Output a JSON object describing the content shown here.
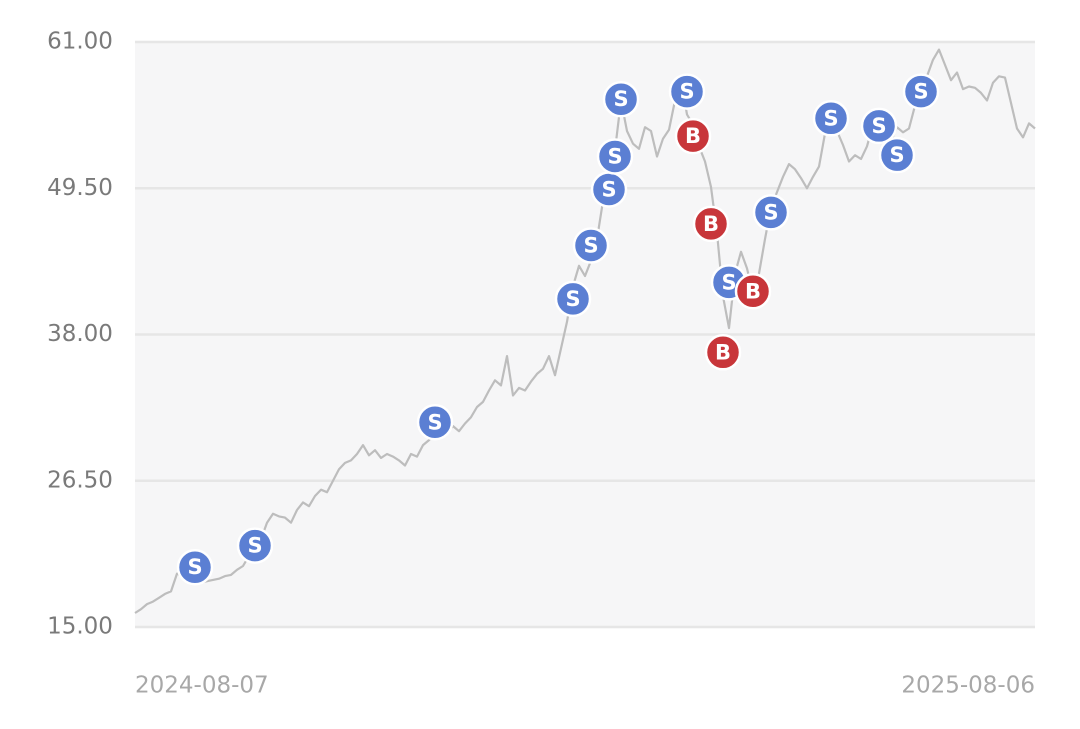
{
  "chart_data": {
    "type": "line",
    "categories": [
      "2024-08-07",
      null,
      null,
      null,
      null,
      null,
      null,
      null,
      null,
      null,
      null,
      null,
      null,
      null,
      null,
      null,
      null,
      null,
      null,
      null,
      null,
      null,
      null,
      null,
      null,
      null,
      null,
      null,
      null,
      null,
      null,
      null,
      null,
      null,
      null,
      null,
      null,
      null,
      null,
      null,
      null,
      null,
      null,
      null,
      null,
      null,
      null,
      null,
      null,
      null,
      null,
      null,
      null,
      null,
      null,
      null,
      null,
      null,
      null,
      null,
      null,
      null,
      null,
      null,
      null,
      null,
      null,
      null,
      null,
      null,
      null,
      null,
      null,
      null,
      null,
      null,
      null,
      null,
      null,
      null,
      null,
      null,
      null,
      null,
      null,
      null,
      null,
      null,
      null,
      null,
      null,
      null,
      null,
      null,
      null,
      null,
      null,
      null,
      null,
      null,
      null,
      null,
      null,
      null,
      null,
      null,
      null,
      null,
      null,
      null,
      null,
      null,
      null,
      null,
      null,
      null,
      null,
      null,
      null,
      null,
      null,
      null,
      null,
      null,
      null,
      null,
      null,
      null,
      null,
      null,
      null,
      null,
      null,
      null,
      null,
      null,
      null,
      null,
      null,
      null,
      null,
      null,
      null,
      null,
      null,
      null,
      null,
      null,
      null,
      null,
      "2025-08-06"
    ],
    "values": [
      16.1,
      16.4,
      16.8,
      17.0,
      17.3,
      17.6,
      17.8,
      19.2,
      19.0,
      18.8,
      18.6,
      18.5,
      18.6,
      18.7,
      18.8,
      19.0,
      19.1,
      19.5,
      19.8,
      20.6,
      21.0,
      21.9,
      23.2,
      23.9,
      23.7,
      23.6,
      23.2,
      24.2,
      24.8,
      24.5,
      25.3,
      25.8,
      25.6,
      26.5,
      27.4,
      27.9,
      28.1,
      28.6,
      29.3,
      28.5,
      28.9,
      28.3,
      28.6,
      28.4,
      28.1,
      27.7,
      28.6,
      28.4,
      29.3,
      29.7,
      30.2,
      30.6,
      30.3,
      30.8,
      30.4,
      31.0,
      31.5,
      32.3,
      32.7,
      33.6,
      34.4,
      34.0,
      36.3,
      33.2,
      33.8,
      33.6,
      34.3,
      34.9,
      35.3,
      36.3,
      34.8,
      36.9,
      39.0,
      41.8,
      43.4,
      42.6,
      43.8,
      45.5,
      48.5,
      50.0,
      52.5,
      56.4,
      54.0,
      53.0,
      52.6,
      54.3,
      54.0,
      52.0,
      53.4,
      54.1,
      56.4,
      58.0,
      55.3,
      54.5,
      52.8,
      51.6,
      49.6,
      46.0,
      41.0,
      38.5,
      42.8,
      44.5,
      43.2,
      41.2,
      42.8,
      45.5,
      48.0,
      49.2,
      50.4,
      51.4,
      51.0,
      50.3,
      49.5,
      50.4,
      51.2,
      53.8,
      55.0,
      54.0,
      52.9,
      51.6,
      52.1,
      51.8,
      52.8,
      54.5,
      54.8,
      53.6,
      53.2,
      54.3,
      53.9,
      54.2,
      56.0,
      57.3,
      58.3,
      59.6,
      60.4,
      59.2,
      58.0,
      58.6,
      57.3,
      57.5,
      57.4,
      57.0,
      56.4,
      57.8,
      58.3,
      58.2,
      56.2,
      54.2,
      53.5,
      54.6,
      54.2
    ],
    "color": "#bdbdbd",
    "markers": [
      {
        "label": "S",
        "color": "#5b7fd3",
        "values": [
          null,
          null,
          null,
          null,
          null,
          null,
          null,
          null,
          null,
          null,
          19.7,
          null,
          null,
          null,
          null,
          null,
          null,
          null,
          null,
          null,
          21.4,
          null,
          null,
          null,
          null,
          null,
          null,
          null,
          null,
          null,
          null,
          null,
          null,
          null,
          null,
          null,
          null,
          null,
          null,
          null,
          null,
          null,
          null,
          null,
          null,
          null,
          null,
          null,
          null,
          null,
          31.1,
          null,
          null,
          null,
          null,
          null,
          null,
          null,
          null,
          null,
          null,
          null,
          null,
          null,
          null,
          null,
          null,
          null,
          null,
          null,
          null,
          null,
          null,
          40.8,
          null,
          null,
          45.0,
          null,
          null,
          49.4,
          52.0,
          56.5,
          null,
          null,
          null,
          null,
          null,
          null,
          null,
          null,
          null,
          null,
          57.1,
          null,
          null,
          null,
          null,
          null,
          null,
          42.1,
          null,
          null,
          null,
          null,
          null,
          null,
          47.6,
          null,
          null,
          null,
          null,
          null,
          null,
          null,
          null,
          null,
          55.0,
          null,
          null,
          null,
          null,
          null,
          null,
          null,
          54.4,
          null,
          null,
          52.1,
          null,
          null,
          null,
          57.1,
          null,
          null,
          null,
          null,
          null,
          null,
          null,
          null,
          null,
          null,
          null,
          null,
          null,
          null,
          null,
          null,
          null,
          null,
          null
        ]
      },
      {
        "label": "B",
        "color": "#c8363a",
        "values": [
          null,
          null,
          null,
          null,
          null,
          null,
          null,
          null,
          null,
          null,
          null,
          null,
          null,
          null,
          null,
          null,
          null,
          null,
          null,
          null,
          null,
          null,
          null,
          null,
          null,
          null,
          null,
          null,
          null,
          null,
          null,
          null,
          null,
          null,
          null,
          null,
          null,
          null,
          null,
          null,
          null,
          null,
          null,
          null,
          null,
          null,
          null,
          null,
          null,
          null,
          null,
          null,
          null,
          null,
          null,
          null,
          null,
          null,
          null,
          null,
          null,
          null,
          null,
          null,
          null,
          null,
          null,
          null,
          null,
          null,
          null,
          null,
          null,
          null,
          null,
          null,
          null,
          null,
          null,
          null,
          null,
          null,
          null,
          null,
          null,
          null,
          null,
          null,
          null,
          null,
          null,
          null,
          null,
          53.6,
          null,
          null,
          46.7,
          null,
          36.6,
          null,
          null,
          null,
          null,
          41.4,
          null,
          null,
          null,
          null,
          null,
          null,
          null,
          null,
          null,
          null,
          null,
          null,
          null,
          null,
          null,
          null,
          null,
          null,
          null,
          null,
          null,
          null,
          null,
          null,
          null,
          null,
          null,
          null,
          null,
          null,
          null,
          null,
          null,
          null,
          null,
          null,
          null,
          null,
          null,
          null,
          null,
          null,
          null,
          null,
          null,
          null,
          null
        ]
      }
    ],
    "ylim": [
      15,
      61
    ],
    "yticks": [
      {
        "value": 15,
        "label": "15.00"
      },
      {
        "value": 26.5,
        "label": "26.50"
      },
      {
        "value": 38,
        "label": "38.00"
      },
      {
        "value": 49.5,
        "label": "49.50"
      },
      {
        "value": 61,
        "label": "61.00"
      }
    ],
    "grid": true
  }
}
